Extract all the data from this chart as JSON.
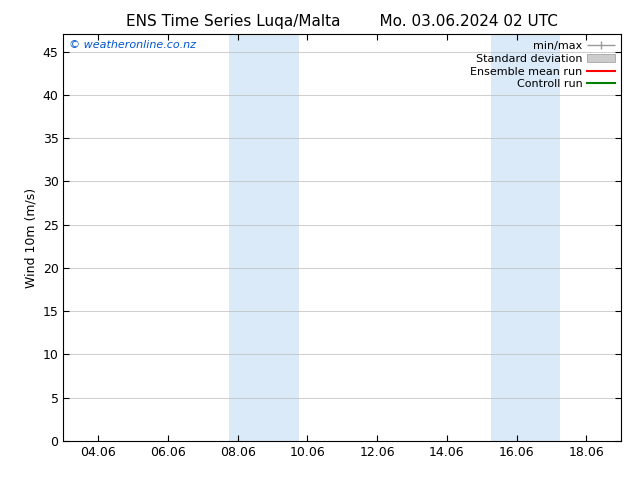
{
  "title_left": "ENS Time Series Luqa/Malta",
  "title_right": "Mo. 03.06.2024 02 UTC",
  "ylabel": "Wind 10m (m/s)",
  "watermark": "© weatheronline.co.nz",
  "watermark_color": "#0055cc",
  "background_color": "#ffffff",
  "plot_bg_color": "#ffffff",
  "xmin": 3.0,
  "xmax": 19.0,
  "ymin": 0,
  "ymax": 47,
  "yticks": [
    0,
    5,
    10,
    15,
    20,
    25,
    30,
    35,
    40,
    45
  ],
  "xtick_positions": [
    4,
    6,
    8,
    10,
    12,
    14,
    16,
    18
  ],
  "xtick_labels": [
    "04.06",
    "06.06",
    "08.06",
    "10.06",
    "12.06",
    "14.06",
    "16.06",
    "18.06"
  ],
  "shaded_bands": [
    {
      "x_start": 7.75,
      "x_end": 9.75,
      "color": "#daeaf8"
    },
    {
      "x_start": 15.25,
      "x_end": 17.25,
      "color": "#daeaf8"
    }
  ],
  "grid_color": "#bbbbbb",
  "tick_color": "#000000",
  "spine_color": "#000000",
  "title_fontsize": 11,
  "tick_fontsize": 9,
  "ylabel_fontsize": 9,
  "watermark_fontsize": 8,
  "legend_fontsize": 8,
  "minmax_color": "#999999",
  "stddev_color": "#cccccc",
  "ensemble_color": "#ff0000",
  "control_color": "#008000"
}
